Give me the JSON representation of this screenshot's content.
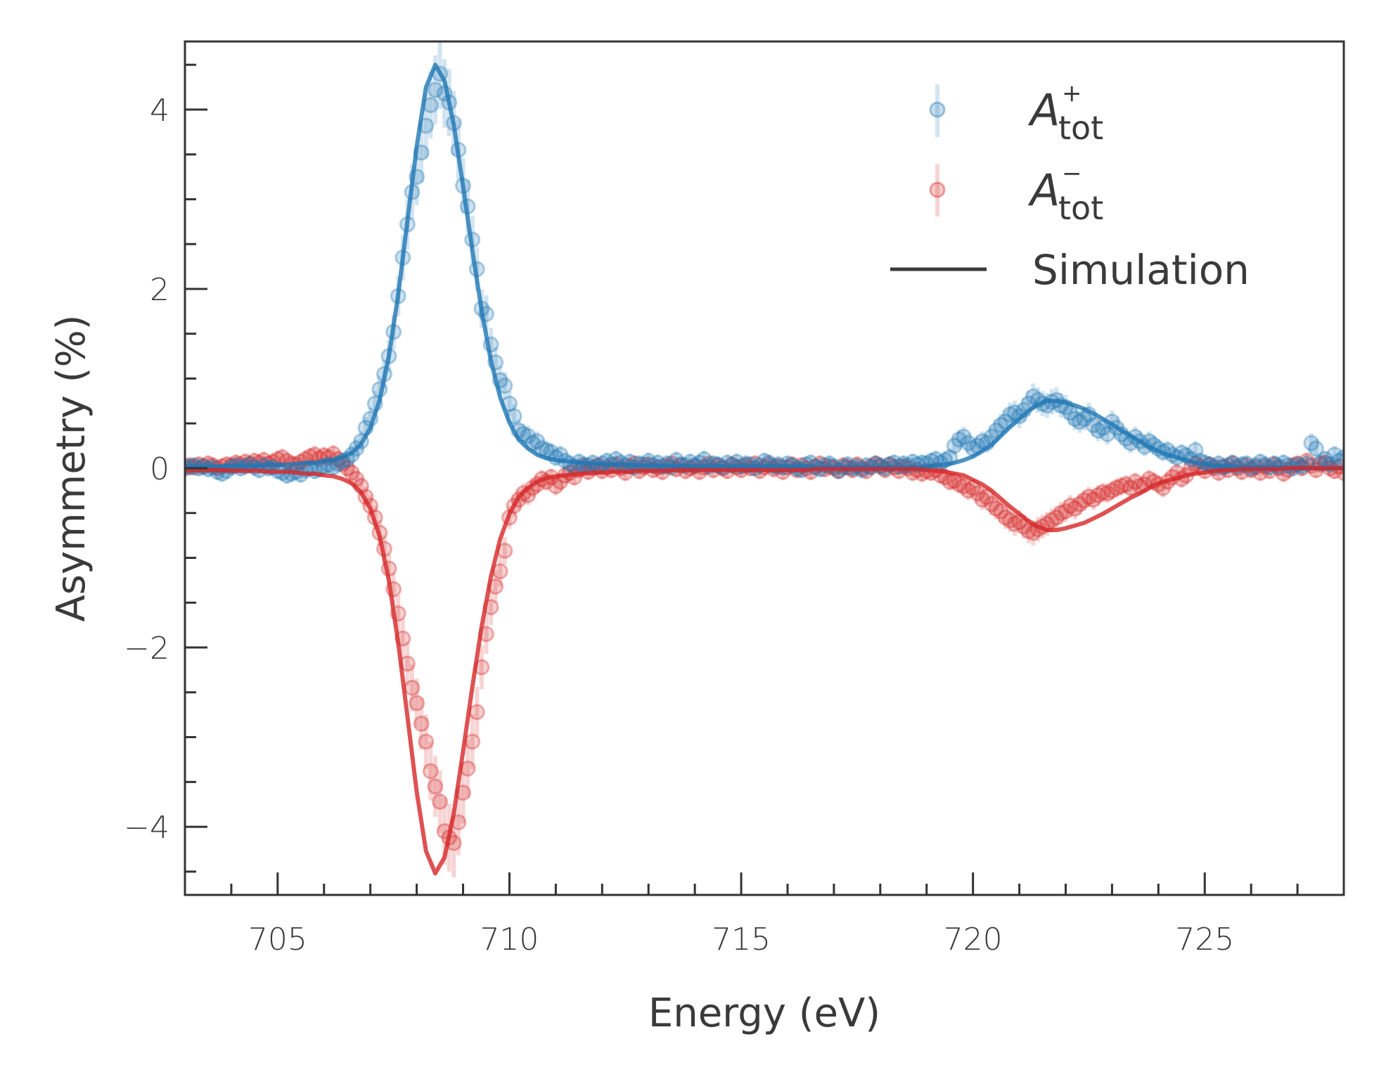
{
  "chart_data": {
    "type": "scatter",
    "title": "",
    "xlabel": "Energy (eV)",
    "ylabel": "Asymmetry (%)",
    "xlim": [
      703.0,
      728.0
    ],
    "ylim": [
      -4.76,
      4.76
    ],
    "grid": false,
    "legend_position": "top-right",
    "x_ticks": [
      705,
      710,
      715,
      720,
      725
    ],
    "x_tick_labels": [
      "705",
      "710",
      "715",
      "720",
      "725"
    ],
    "x_minor_step": 1,
    "y_ticks": [
      -4,
      -2,
      0,
      2,
      4
    ],
    "y_tick_labels": [
      "−4",
      "−2",
      "0",
      "2",
      "4"
    ],
    "y_minor_step": 0.5,
    "colors": {
      "plus": "#1f77b4",
      "minus": "#d62728",
      "axis": "#333333"
    },
    "legend": [
      {
        "key": "plus",
        "symbol": "A",
        "subscript": "tot",
        "superscript": "+",
        "kind": "errorbar-marker"
      },
      {
        "key": "minus",
        "symbol": "A",
        "subscript": "tot",
        "superscript": "−",
        "kind": "errorbar-marker"
      },
      {
        "key": "simulation",
        "label": "Simulation",
        "kind": "line"
      }
    ],
    "measured_x": {
      "start": 703.0,
      "step": 0.1,
      "count": 251
    },
    "error_model": {
      "base": 0.09,
      "scale": 0.07
    },
    "series": [
      {
        "name": "A_tot^+",
        "key": "plus",
        "values": [
          0.02,
          0.01,
          0.03,
          0.0,
          0.02,
          -0.01,
          0.01,
          -0.04,
          -0.06,
          -0.03,
          0.01,
          0.03,
          0.0,
          0.02,
          0.04,
          0.01,
          -0.02,
          0.03,
          0.0,
          0.01,
          -0.03,
          -0.05,
          -0.08,
          -0.06,
          -0.04,
          -0.07,
          -0.02,
          0.0,
          -0.03,
          -0.01,
          0.02,
          0.04,
          0.01,
          0.05,
          0.08,
          0.1,
          0.15,
          0.22,
          0.3,
          0.45,
          0.55,
          0.72,
          0.88,
          1.05,
          1.25,
          1.52,
          1.92,
          2.35,
          2.72,
          3.08,
          3.25,
          3.52,
          3.82,
          4.05,
          4.22,
          4.4,
          4.18,
          4.08,
          3.85,
          3.55,
          3.15,
          2.92,
          2.55,
          2.22,
          1.78,
          1.72,
          1.38,
          1.18,
          0.98,
          0.92,
          0.72,
          0.58,
          0.42,
          0.38,
          0.36,
          0.28,
          0.3,
          0.22,
          0.2,
          0.18,
          0.12,
          0.15,
          0.08,
          0.05,
          0.02,
          0.07,
          0.04,
          0.03,
          0.06,
          0.02,
          0.05,
          0.08,
          0.04,
          0.1,
          0.06,
          0.03,
          0.07,
          0.01,
          0.05,
          0.04,
          0.08,
          0.03,
          0.06,
          0.02,
          0.05,
          0.01,
          0.09,
          0.04,
          0.03,
          0.07,
          0.03,
          0.06,
          0.1,
          0.02,
          0.05,
          0.04,
          0.01,
          0.06,
          0.03,
          0.07,
          0.02,
          0.05,
          0.04,
          0.0,
          0.03,
          0.08,
          0.06,
          0.02,
          0.04,
          0.01,
          0.05,
          0.03,
          0.0,
          -0.02,
          0.04,
          0.06,
          0.01,
          -0.01,
          0.03,
          0.05,
          0.02,
          -0.03,
          0.01,
          0.04,
          0.0,
          0.02,
          -0.02,
          0.03,
          0.01,
          0.05,
          0.03,
          0.0,
          0.04,
          0.06,
          0.02,
          0.05,
          0.03,
          0.07,
          0.04,
          0.06,
          0.05,
          0.08,
          0.1,
          0.06,
          0.09,
          0.12,
          0.25,
          0.32,
          0.35,
          0.28,
          0.22,
          0.25,
          0.3,
          0.28,
          0.35,
          0.42,
          0.48,
          0.52,
          0.6,
          0.62,
          0.58,
          0.65,
          0.72,
          0.8,
          0.76,
          0.72,
          0.7,
          0.74,
          0.76,
          0.7,
          0.68,
          0.62,
          0.55,
          0.52,
          0.55,
          0.6,
          0.48,
          0.42,
          0.45,
          0.38,
          0.52,
          0.45,
          0.38,
          0.33,
          0.28,
          0.35,
          0.3,
          0.24,
          0.3,
          0.26,
          0.22,
          0.18,
          0.2,
          0.15,
          0.12,
          0.17,
          0.14,
          0.1,
          0.2,
          0.08,
          0.06,
          0.04,
          0.02,
          0.05,
          0.01,
          0.03,
          0.06,
          0.02,
          0.04,
          0.05,
          0.0,
          0.03,
          0.07,
          0.04,
          0.01,
          0.05,
          0.02,
          0.06,
          0.03,
          0.0,
          0.04,
          0.02,
          0.05,
          0.28,
          0.22,
          0.06,
          0.1,
          0.04,
          0.15,
          0.08,
          0.12
        ]
      },
      {
        "name": "A_tot^-",
        "key": "minus",
        "values": [
          0.0,
          0.03,
          0.01,
          0.04,
          0.02,
          0.05,
          0.03,
          0.0,
          0.02,
          0.04,
          0.03,
          0.06,
          0.04,
          0.07,
          0.05,
          0.08,
          0.06,
          0.09,
          0.05,
          0.07,
          0.1,
          0.12,
          0.08,
          0.05,
          0.04,
          0.07,
          0.1,
          0.13,
          0.15,
          0.11,
          0.14,
          0.12,
          0.16,
          0.1,
          0.05,
          0.0,
          -0.05,
          -0.12,
          -0.2,
          -0.32,
          -0.42,
          -0.55,
          -0.72,
          -0.9,
          -1.12,
          -1.35,
          -1.62,
          -1.9,
          -2.18,
          -2.45,
          -2.62,
          -2.85,
          -3.05,
          -3.38,
          -3.55,
          -3.72,
          -4.05,
          -4.12,
          -4.18,
          -3.95,
          -3.62,
          -3.35,
          -3.05,
          -2.72,
          -2.22,
          -1.85,
          -1.55,
          -1.32,
          -1.15,
          -0.92,
          -0.55,
          -0.42,
          -0.35,
          -0.28,
          -0.3,
          -0.22,
          -0.18,
          -0.12,
          -0.15,
          -0.1,
          -0.2,
          -0.15,
          -0.08,
          -0.05,
          -0.1,
          -0.02,
          0.02,
          -0.04,
          0.0,
          0.03,
          -0.03,
          0.01,
          -0.02,
          0.04,
          0.0,
          -0.05,
          0.02,
          0.05,
          -0.03,
          0.01,
          0.04,
          -0.02,
          0.01,
          -0.04,
          0.02,
          0.05,
          -0.01,
          0.03,
          -0.03,
          0.0,
          0.02,
          -0.04,
          0.01,
          0.05,
          -0.02,
          0.03,
          0.0,
          -0.03,
          0.04,
          0.01,
          -0.02,
          0.03,
          0.0,
          0.05,
          -0.03,
          0.01,
          0.04,
          -0.01,
          0.02,
          -0.04,
          0.01,
          0.04,
          -0.02,
          0.03,
          0.0,
          -0.04,
          0.02,
          0.05,
          -0.01,
          0.02,
          0.0,
          -0.03,
          0.03,
          0.01,
          -0.02,
          0.04,
          0.0,
          -0.03,
          0.02,
          0.05,
          0.02,
          -0.02,
          0.04,
          0.01,
          -0.03,
          0.02,
          0.0,
          -0.05,
          -0.02,
          -0.06,
          -0.03,
          -0.05,
          -0.02,
          -0.08,
          -0.1,
          -0.15,
          -0.14,
          -0.18,
          -0.2,
          -0.25,
          -0.22,
          -0.28,
          -0.35,
          -0.32,
          -0.4,
          -0.45,
          -0.48,
          -0.55,
          -0.58,
          -0.62,
          -0.6,
          -0.65,
          -0.7,
          -0.72,
          -0.68,
          -0.65,
          -0.62,
          -0.58,
          -0.55,
          -0.5,
          -0.48,
          -0.42,
          -0.45,
          -0.4,
          -0.36,
          -0.32,
          -0.35,
          -0.3,
          -0.27,
          -0.28,
          -0.25,
          -0.22,
          -0.2,
          -0.18,
          -0.22,
          -0.15,
          -0.2,
          -0.18,
          -0.12,
          -0.15,
          -0.18,
          -0.22,
          -0.15,
          -0.1,
          -0.05,
          -0.12,
          -0.08,
          0.0,
          0.05,
          0.02,
          -0.03,
          0.04,
          0.0,
          -0.05,
          0.02,
          -0.02,
          0.05,
          0.0,
          -0.04,
          0.03,
          -0.02,
          0.01,
          -0.05,
          0.02,
          -0.03,
          0.04,
          0.0,
          -0.06,
          -0.02,
          0.03,
          0.05,
          0.0,
          0.08,
          0.03,
          -0.02,
          0.04,
          0.06,
          0.0,
          -0.03,
          0.02,
          -0.05
        ]
      }
    ],
    "simulation_x": {
      "start": 703.0,
      "step": 0.2,
      "count": 126
    },
    "simulation": [
      {
        "name": "Simulation (+)",
        "key": "plus",
        "values": [
          0.02,
          0.02,
          0.02,
          0.02,
          0.02,
          0.03,
          0.03,
          0.03,
          0.03,
          0.04,
          0.04,
          0.04,
          0.05,
          0.06,
          0.06,
          0.08,
          0.09,
          0.12,
          0.17,
          0.27,
          0.45,
          0.76,
          1.25,
          1.93,
          2.76,
          3.59,
          4.25,
          4.5,
          4.32,
          3.83,
          3.15,
          2.43,
          1.76,
          1.2,
          0.79,
          0.51,
          0.32,
          0.22,
          0.15,
          0.11,
          0.09,
          0.08,
          0.07,
          0.06,
          0.05,
          0.05,
          0.04,
          0.04,
          0.04,
          0.03,
          0.03,
          0.03,
          0.03,
          0.02,
          0.02,
          0.02,
          0.02,
          0.02,
          0.02,
          0.02,
          0.02,
          0.02,
          0.02,
          0.02,
          0.02,
          0.02,
          0.02,
          0.02,
          0.01,
          0.01,
          0.01,
          0.01,
          0.01,
          0.01,
          0.01,
          0.01,
          0.01,
          0.01,
          0.01,
          0.01,
          0.02,
          0.03,
          0.04,
          0.06,
          0.09,
          0.13,
          0.19,
          0.26,
          0.36,
          0.46,
          0.55,
          0.64,
          0.71,
          0.75,
          0.75,
          0.73,
          0.7,
          0.66,
          0.61,
          0.55,
          0.49,
          0.42,
          0.36,
          0.3,
          0.24,
          0.19,
          0.15,
          0.12,
          0.09,
          0.06,
          0.05,
          0.03,
          0.02,
          0.02,
          0.01,
          0.01,
          0.01,
          0.01,
          0.01,
          0.0,
          0.0,
          0.0,
          0.0,
          0.0,
          0.0,
          0.0
        ]
      },
      {
        "name": "Simulation (−)",
        "key": "minus",
        "values": [
          -0.02,
          -0.02,
          -0.02,
          -0.02,
          -0.02,
          -0.03,
          -0.03,
          -0.03,
          -0.03,
          -0.04,
          -0.04,
          -0.04,
          -0.05,
          -0.06,
          -0.06,
          -0.08,
          -0.09,
          -0.12,
          -0.17,
          -0.27,
          -0.45,
          -0.76,
          -1.25,
          -1.94,
          -2.77,
          -3.61,
          -4.27,
          -4.52,
          -4.34,
          -3.85,
          -3.16,
          -2.44,
          -1.77,
          -1.21,
          -0.79,
          -0.51,
          -0.32,
          -0.22,
          -0.15,
          -0.11,
          -0.09,
          -0.08,
          -0.07,
          -0.06,
          -0.05,
          -0.05,
          -0.04,
          -0.04,
          -0.04,
          -0.03,
          -0.03,
          -0.03,
          -0.03,
          -0.02,
          -0.02,
          -0.02,
          -0.02,
          -0.02,
          -0.02,
          -0.02,
          -0.02,
          -0.02,
          -0.02,
          -0.02,
          -0.02,
          -0.02,
          -0.02,
          -0.02,
          -0.01,
          -0.01,
          -0.01,
          -0.01,
          -0.01,
          -0.01,
          -0.01,
          -0.01,
          -0.01,
          -0.01,
          -0.01,
          -0.01,
          -0.02,
          -0.03,
          -0.04,
          -0.06,
          -0.08,
          -0.13,
          -0.18,
          -0.25,
          -0.34,
          -0.43,
          -0.51,
          -0.59,
          -0.65,
          -0.69,
          -0.69,
          -0.67,
          -0.64,
          -0.61,
          -0.56,
          -0.51,
          -0.45,
          -0.39,
          -0.33,
          -0.28,
          -0.22,
          -0.17,
          -0.14,
          -0.11,
          -0.08,
          -0.06,
          -0.05,
          -0.03,
          -0.02,
          -0.02,
          -0.01,
          -0.01,
          -0.01,
          -0.01,
          -0.01,
          0.0,
          0.0,
          0.0,
          0.0,
          0.0,
          0.0,
          0.0
        ]
      }
    ]
  }
}
